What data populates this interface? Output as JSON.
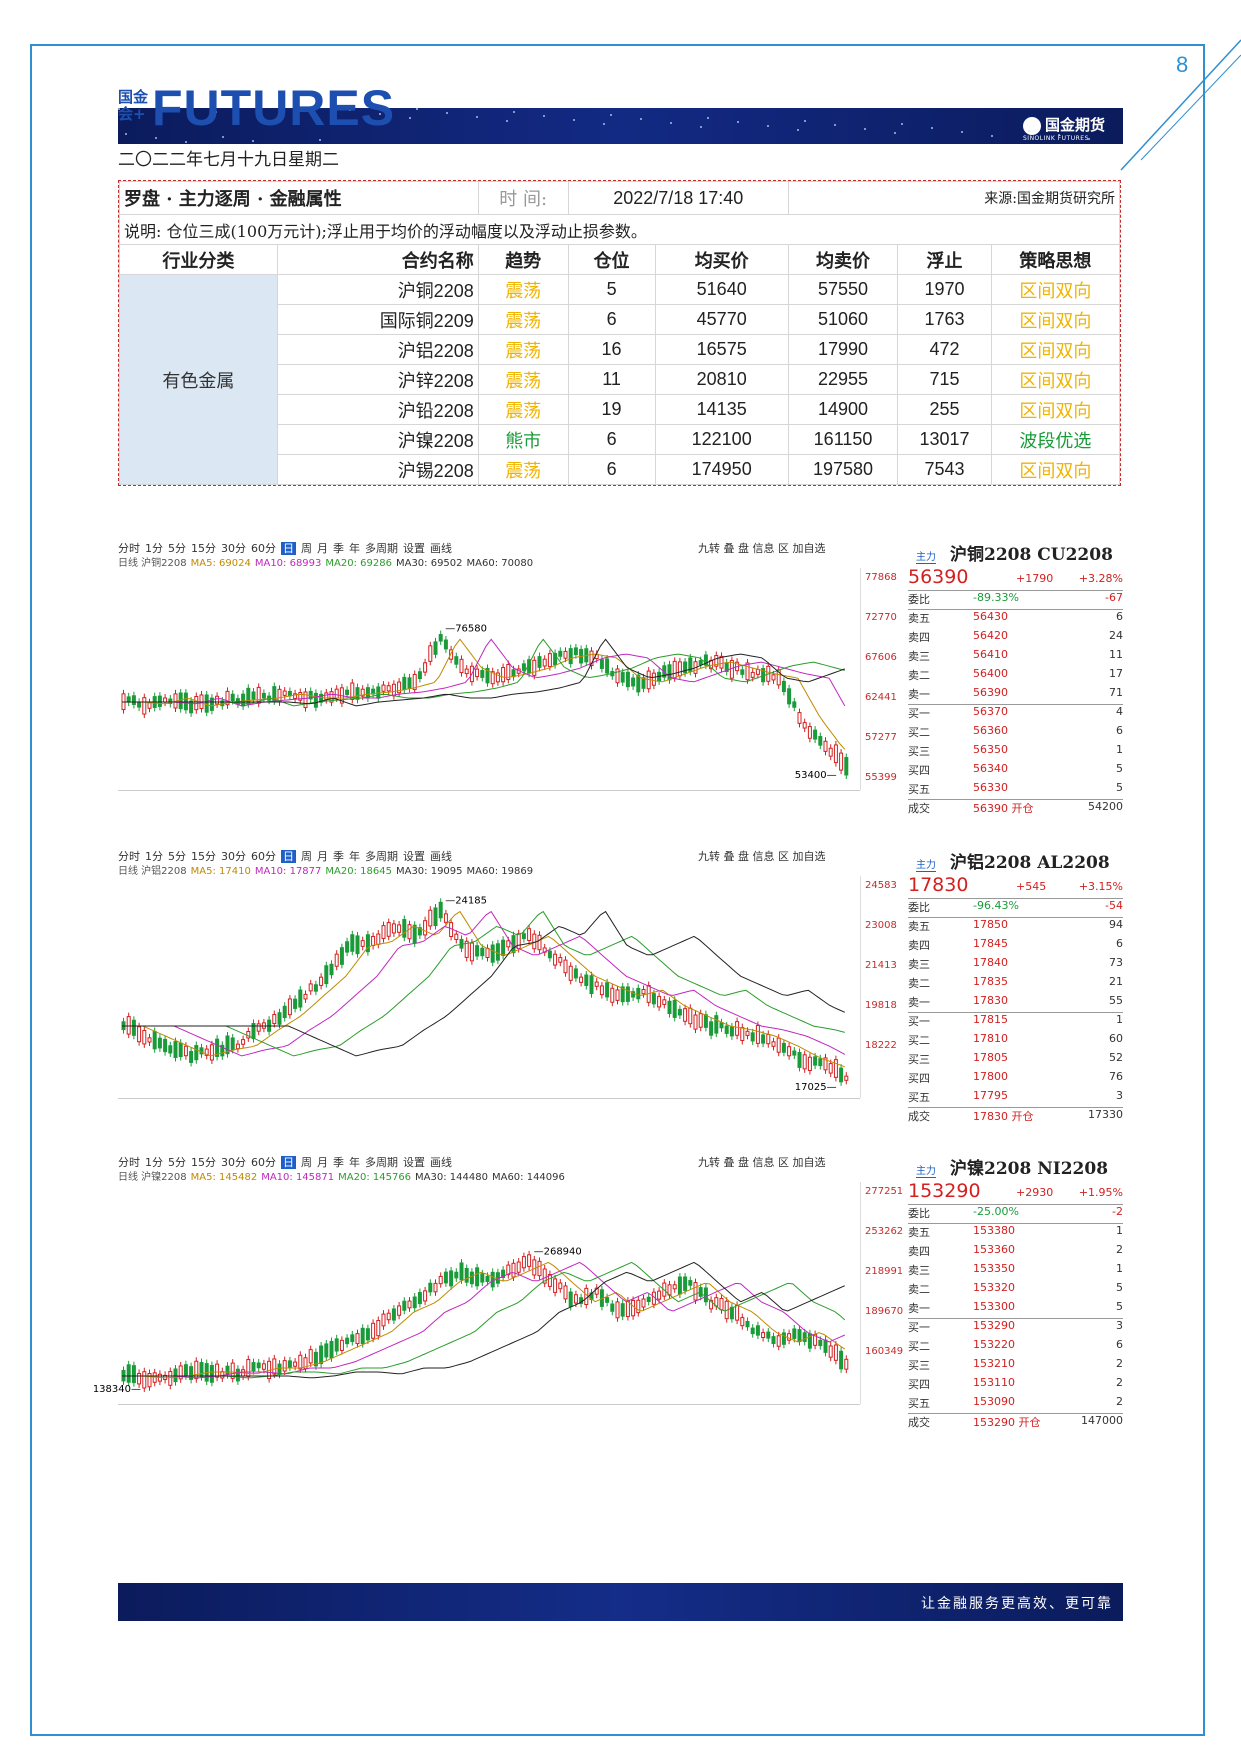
{
  "page_number": "8",
  "header": {
    "logo_cn": "国金\n会+",
    "logo_en": "FUTURES",
    "brand": "国金期货",
    "brand_en": "SINOLINK FUTURES",
    "date": "二〇二二年七月十九日星期二"
  },
  "table": {
    "title": "罗盘 · 主力逐周 · 金融属性",
    "time_label": "时  间:",
    "time_value": "2022/7/18 17:40",
    "source": "来源:国金期货研究所",
    "note": "说明: 仓位三成(100万元计);浮止用于均价的浮动幅度以及浮动止损参数。",
    "headers": [
      "行业分类",
      "合约名称",
      "趋势",
      "仓位",
      "均买价",
      "均卖价",
      "浮止",
      "策略思想"
    ],
    "category": "有色金属",
    "rows": [
      [
        "沪铜2208",
        "震荡",
        "5",
        "51640",
        "57550",
        "1970",
        "区间双向"
      ],
      [
        "国际铜2209",
        "震荡",
        "6",
        "45770",
        "51060",
        "1763",
        "区间双向"
      ],
      [
        "沪铝2208",
        "震荡",
        "16",
        "16575",
        "17990",
        "472",
        "区间双向"
      ],
      [
        "沪锌2208",
        "震荡",
        "11",
        "20810",
        "22955",
        "715",
        "区间双向"
      ],
      [
        "沪铅2208",
        "震荡",
        "19",
        "14135",
        "14900",
        "255",
        "区间双向"
      ],
      [
        "沪镍2208",
        "熊市",
        "6",
        "122100",
        "161150",
        "13017",
        "波段优选"
      ],
      [
        "沪锡2208",
        "震荡",
        "6",
        "174950",
        "197580",
        "7543",
        "区间双向"
      ]
    ]
  },
  "charts": [
    {
      "toolbar": [
        "分时",
        "1分",
        "5分",
        "15分",
        "30分",
        "60分",
        "日",
        "周",
        "月",
        "季",
        "年",
        "多周期",
        "设置",
        "画线"
      ],
      "toolbar_right": "九转 叠 盘 信息 区 加自选",
      "ma_line": [
        "日线 沪铜2208",
        "MA5: 69024",
        "MA10: 68993",
        "MA20: 69286",
        "MA30: 69502",
        "MA60: 70080"
      ],
      "y_labels": [
        "77868",
        "72770",
        "67606",
        "62441",
        "57277",
        "55399"
      ],
      "annot_high": "76580",
      "annot_low": "53400",
      "quote": {
        "tag": "主力",
        "name": "沪铜2208 CU2208",
        "price": "56390",
        "change": "+1790",
        "pct": "+3.28%",
        "weibi_label": "委比",
        "weibi": "-89.33%",
        "weicha": "-67",
        "asks": [
          [
            "卖五",
            "56430",
            "6"
          ],
          [
            "卖四",
            "56420",
            "24"
          ],
          [
            "卖三",
            "56410",
            "11"
          ],
          [
            "卖二",
            "56400",
            "17"
          ],
          [
            "卖一",
            "56390",
            "71"
          ]
        ],
        "bids": [
          [
            "买一",
            "56370",
            "4"
          ],
          [
            "买二",
            "56360",
            "6"
          ],
          [
            "买三",
            "56350",
            "1"
          ],
          [
            "买四",
            "56340",
            "5"
          ],
          [
            "买五",
            "56330",
            "5"
          ]
        ],
        "last": [
          "成交",
          "56390 开仓",
          "54200"
        ]
      }
    },
    {
      "toolbar": [
        "分时",
        "1分",
        "5分",
        "15分",
        "30分",
        "60分",
        "日",
        "周",
        "月",
        "季",
        "年",
        "多周期",
        "设置",
        "画线"
      ],
      "toolbar_right": "九转 叠 盘 信息 区 加自选",
      "ma_line": [
        "日线 沪铝2208",
        "MA5: 17410",
        "MA10: 17877",
        "MA20: 18645",
        "MA30: 19095",
        "MA60: 19869"
      ],
      "y_labels": [
        "24583",
        "23008",
        "21413",
        "19818",
        "18222"
      ],
      "annot_high": "24185",
      "annot_low": "17025",
      "quote": {
        "tag": "主力",
        "name": "沪铝2208 AL2208",
        "price": "17830",
        "change": "+545",
        "pct": "+3.15%",
        "weibi_label": "委比",
        "weibi": "-96.43%",
        "weicha": "-54",
        "asks": [
          [
            "卖五",
            "17850",
            "94"
          ],
          [
            "卖四",
            "17845",
            "6"
          ],
          [
            "卖三",
            "17840",
            "73"
          ],
          [
            "卖二",
            "17835",
            "21"
          ],
          [
            "卖一",
            "17830",
            "55"
          ]
        ],
        "bids": [
          [
            "买一",
            "17815",
            "1"
          ],
          [
            "买二",
            "17810",
            "60"
          ],
          [
            "买三",
            "17805",
            "52"
          ],
          [
            "买四",
            "17800",
            "76"
          ],
          [
            "买五",
            "17795",
            "3"
          ]
        ],
        "last": [
          "成交",
          "17830 开仓",
          "17330"
        ]
      }
    },
    {
      "toolbar": [
        "分时",
        "1分",
        "5分",
        "15分",
        "30分",
        "60分",
        "日",
        "周",
        "月",
        "季",
        "年",
        "多周期",
        "设置",
        "画线"
      ],
      "toolbar_right": "九转 叠 盘 信息 区 加自选",
      "ma_line": [
        "日线 沪镍2208",
        "MA5: 145482",
        "MA10: 145871",
        "MA20: 145766",
        "MA30: 144480",
        "MA60: 144096"
      ],
      "y_labels": [
        "277251",
        "253262",
        "218991",
        "189670",
        "160349"
      ],
      "annot_high": "268940",
      "annot_low": "138340",
      "quote": {
        "tag": "主力",
        "name": "沪镍2208 NI2208",
        "price": "153290",
        "change": "+2930",
        "pct": "+1.95%",
        "weibi_label": "委比",
        "weibi": "-25.00%",
        "weicha": "-2",
        "asks": [
          [
            "卖五",
            "153380",
            "1"
          ],
          [
            "卖四",
            "153360",
            "2"
          ],
          [
            "卖三",
            "153350",
            "1"
          ],
          [
            "卖二",
            "153320",
            "5"
          ],
          [
            "卖一",
            "153300",
            "5"
          ]
        ],
        "bids": [
          [
            "买一",
            "153290",
            "3"
          ],
          [
            "买二",
            "153220",
            "6"
          ],
          [
            "买三",
            "153210",
            "2"
          ],
          [
            "买四",
            "153110",
            "2"
          ],
          [
            "买五",
            "153090",
            "2"
          ]
        ],
        "last": [
          "成交",
          "153290 开仓",
          "147000"
        ]
      }
    }
  ],
  "footer": {
    "slogan": "让金融服务更高效、更可靠"
  }
}
